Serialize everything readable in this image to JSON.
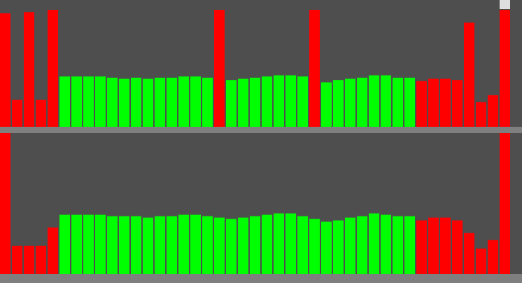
{
  "colors": {
    "background": "#4e4e4e",
    "divider": "#7f7f7f",
    "up": "#00ff00",
    "down": "#ff0000",
    "thumb": "#dedede"
  },
  "chart_data": [
    {
      "type": "bar",
      "ylim": [
        0,
        100
      ],
      "grid": false,
      "series": [
        {
          "values": [
            97,
            23,
            98,
            23,
            100,
            43,
            43,
            43,
            43,
            42,
            41,
            42,
            41,
            42,
            42,
            43,
            43,
            42,
            100,
            40,
            41,
            42,
            43,
            44,
            44,
            43,
            100,
            38,
            40,
            41,
            42,
            44,
            44,
            42,
            42,
            39,
            41,
            41,
            40,
            89,
            21,
            27,
            100
          ],
          "colors": [
            "down",
            "down",
            "down",
            "down",
            "down",
            "up",
            "up",
            "up",
            "up",
            "up",
            "up",
            "up",
            "up",
            "up",
            "up",
            "up",
            "up",
            "up",
            "down",
            "up",
            "up",
            "up",
            "up",
            "up",
            "up",
            "up",
            "down",
            "up",
            "up",
            "up",
            "up",
            "up",
            "up",
            "up",
            "up",
            "down",
            "down",
            "down",
            "down",
            "down",
            "down",
            "down",
            "down"
          ]
        }
      ]
    },
    {
      "type": "bar",
      "ylim": [
        0,
        100
      ],
      "grid": false,
      "series": [
        {
          "values": [
            100,
            20,
            20,
            20,
            33,
            42,
            42,
            42,
            42,
            41,
            41,
            41,
            40,
            41,
            41,
            42,
            42,
            41,
            40,
            39,
            40,
            41,
            42,
            43,
            43,
            41,
            39,
            37,
            38,
            40,
            41,
            43,
            42,
            41,
            41,
            38,
            40,
            40,
            38,
            29,
            18,
            24,
            100
          ],
          "colors": [
            "down",
            "down",
            "down",
            "down",
            "down",
            "up",
            "up",
            "up",
            "up",
            "up",
            "up",
            "up",
            "up",
            "up",
            "up",
            "up",
            "up",
            "up",
            "up",
            "up",
            "up",
            "up",
            "up",
            "up",
            "up",
            "up",
            "up",
            "up",
            "up",
            "up",
            "up",
            "up",
            "up",
            "up",
            "up",
            "down",
            "down",
            "down",
            "down",
            "down",
            "down",
            "down",
            "down"
          ]
        }
      ]
    }
  ]
}
